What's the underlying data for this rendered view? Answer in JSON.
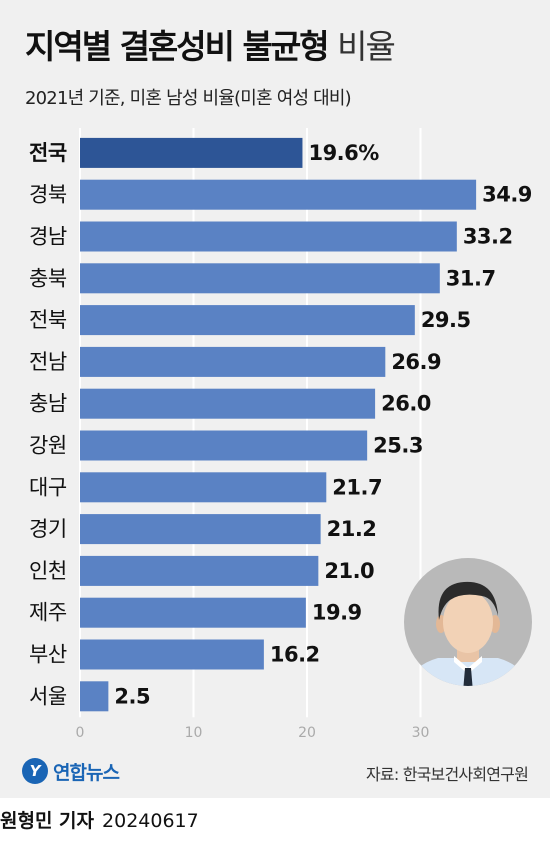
{
  "header": {
    "title": "지역별 결혼성비 불균형",
    "title_suffix": "비율",
    "subtitle": "2021년 기준, 미혼 남성 비율(미혼 여성 대비)"
  },
  "chart_data": {
    "type": "bar",
    "orientation": "horizontal",
    "categories": [
      "전국",
      "경북",
      "경남",
      "충북",
      "전북",
      "전남",
      "충남",
      "강원",
      "대구",
      "경기",
      "인천",
      "제주",
      "부산",
      "서울"
    ],
    "values": [
      19.6,
      34.9,
      33.2,
      31.7,
      29.5,
      26.9,
      26.0,
      25.3,
      21.7,
      21.2,
      21.0,
      19.9,
      16.2,
      2.5
    ],
    "value_labels": [
      "19.6%",
      "34.9",
      "33.2",
      "31.7",
      "29.5",
      "26.9",
      "26.0",
      "25.3",
      "21.7",
      "21.2",
      "21.0",
      "19.9",
      "16.2",
      "2.5"
    ],
    "x_ticks": [
      0,
      10,
      20,
      30
    ],
    "xlim": [
      0,
      35
    ],
    "grid": true,
    "colors": {
      "highlight": "#2d5596",
      "bar": "#5a82c4",
      "grid": "#ffffff"
    }
  },
  "illustration": "person-avatar-icon",
  "footer": {
    "logo_symbol": "Y",
    "logo_text": "연합뉴스",
    "source": "자료: 한국보건사회연구원",
    "reporter": "원형민 기자",
    "date": "20240617"
  }
}
